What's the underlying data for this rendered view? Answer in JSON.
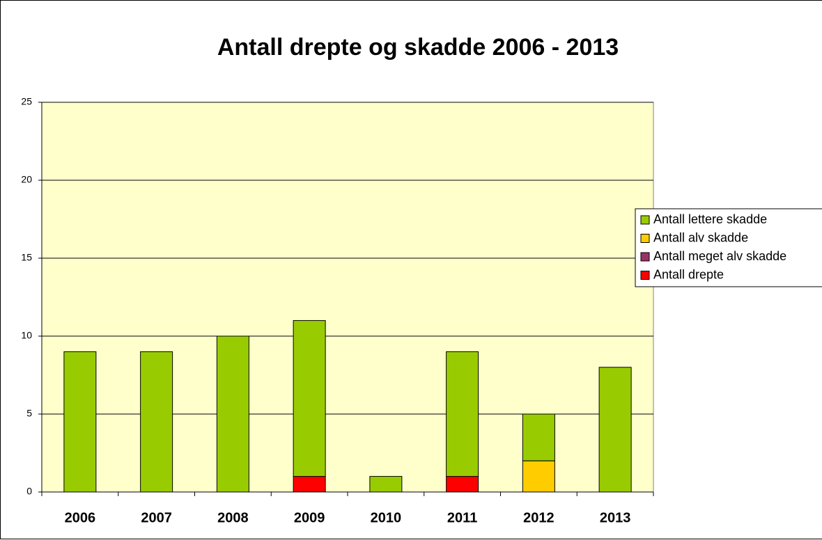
{
  "chart_data": {
    "type": "stacked_bar",
    "title": "Antall drepte og skadde 2006 - 2013",
    "categories": [
      "2006",
      "2007",
      "2008",
      "2009",
      "2010",
      "2011",
      "2012",
      "2013"
    ],
    "series": [
      {
        "name": "Antall drepte",
        "color": "#ff0000",
        "values": [
          0,
          0,
          0,
          1,
          0,
          1,
          0,
          0
        ]
      },
      {
        "name": "Antall meget alv skadde",
        "color": "#993366",
        "values": [
          0,
          0,
          0,
          0,
          0,
          0,
          0,
          0
        ]
      },
      {
        "name": "Antall alv skadde",
        "color": "#ffcc00",
        "values": [
          0,
          0,
          0,
          0,
          0,
          0,
          2,
          0
        ]
      },
      {
        "name": "Antall lettere skadde",
        "color": "#99cc00",
        "values": [
          9,
          9,
          10,
          10,
          1,
          8,
          3,
          8
        ]
      }
    ],
    "ylim": [
      0,
      25
    ],
    "yticks": [
      0,
      5,
      10,
      15,
      20,
      25
    ],
    "grid": true,
    "legend": "right"
  }
}
